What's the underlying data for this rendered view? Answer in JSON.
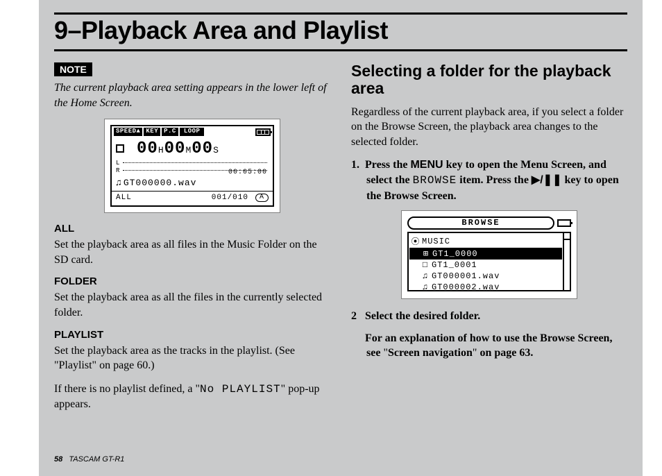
{
  "chapter_title": "9–Playback Area and Playlist",
  "note": {
    "badge": "NOTE",
    "text": "The current playback area setting appears in the lower left of the Home Screen."
  },
  "home_lcd": {
    "top_labels": [
      "SPEED▲",
      "KEY",
      "P.C",
      "LOOP"
    ],
    "timer": {
      "h": "00",
      "m": "00",
      "s": "00"
    },
    "meter_labels": [
      "L",
      "R"
    ],
    "remain_time": "00:05:00",
    "file_name": "GT000000.wav",
    "area_label": "ALL",
    "index": "001/010",
    "loop_pill": "A"
  },
  "area_defs": {
    "all": {
      "title": "ALL",
      "text": "Set the playback area as all files in the Music Folder on the SD card."
    },
    "folder": {
      "title": "FOLDER",
      "text": "Set the playback area as all the files in the currently selected folder."
    },
    "playlist": {
      "title": "PLAYLIST",
      "text1": "Set the playback area as the tracks in the playlist. (See \"Playlist\" on page 60.)",
      "text2_a": "If there is no playlist defined, a \"",
      "text2_mono": "No PLAYLIST",
      "text2_b": "\" pop-up appears."
    }
  },
  "right": {
    "heading": "Selecting a folder for the playback area",
    "intro": "Regardless of the current playback area, if you select a folder on the Browse Screen, the playback area changes to the selected folder.",
    "step1": {
      "num": "1.",
      "a": "Press the ",
      "menu_key": "MENU",
      "b": " key to open the Menu Screen, and select the ",
      "browse_mono": "BROWSE",
      "c": " item. Press the ",
      "play_sym": "▶/❚❚",
      "d": " key to open the Browse Screen."
    },
    "step2": {
      "num": "2",
      "text": "Select the desired folder."
    },
    "step_note": {
      "a": "For an explanation of how to use the Browse Screen, see ",
      "q1": "\"",
      "link": "Screen navigation",
      "q2": "\"",
      "b": " on page 63."
    }
  },
  "browse_lcd": {
    "title": "BROWSE",
    "rows": [
      {
        "icon": "folder-open",
        "label": "MUSIC",
        "sel": false,
        "indent": false
      },
      {
        "icon": "folder-plus",
        "label": "GT1_0000",
        "sel": true,
        "indent": true
      },
      {
        "icon": "folder",
        "label": "GT1_0001",
        "sel": false,
        "indent": true
      },
      {
        "icon": "note",
        "label": "GT000001.wav",
        "sel": false,
        "indent": true
      },
      {
        "icon": "note",
        "label": "GT000002.wav",
        "sel": false,
        "indent": true
      }
    ]
  },
  "footer": {
    "page": "58",
    "product": "TASCAM  GT-R1"
  }
}
